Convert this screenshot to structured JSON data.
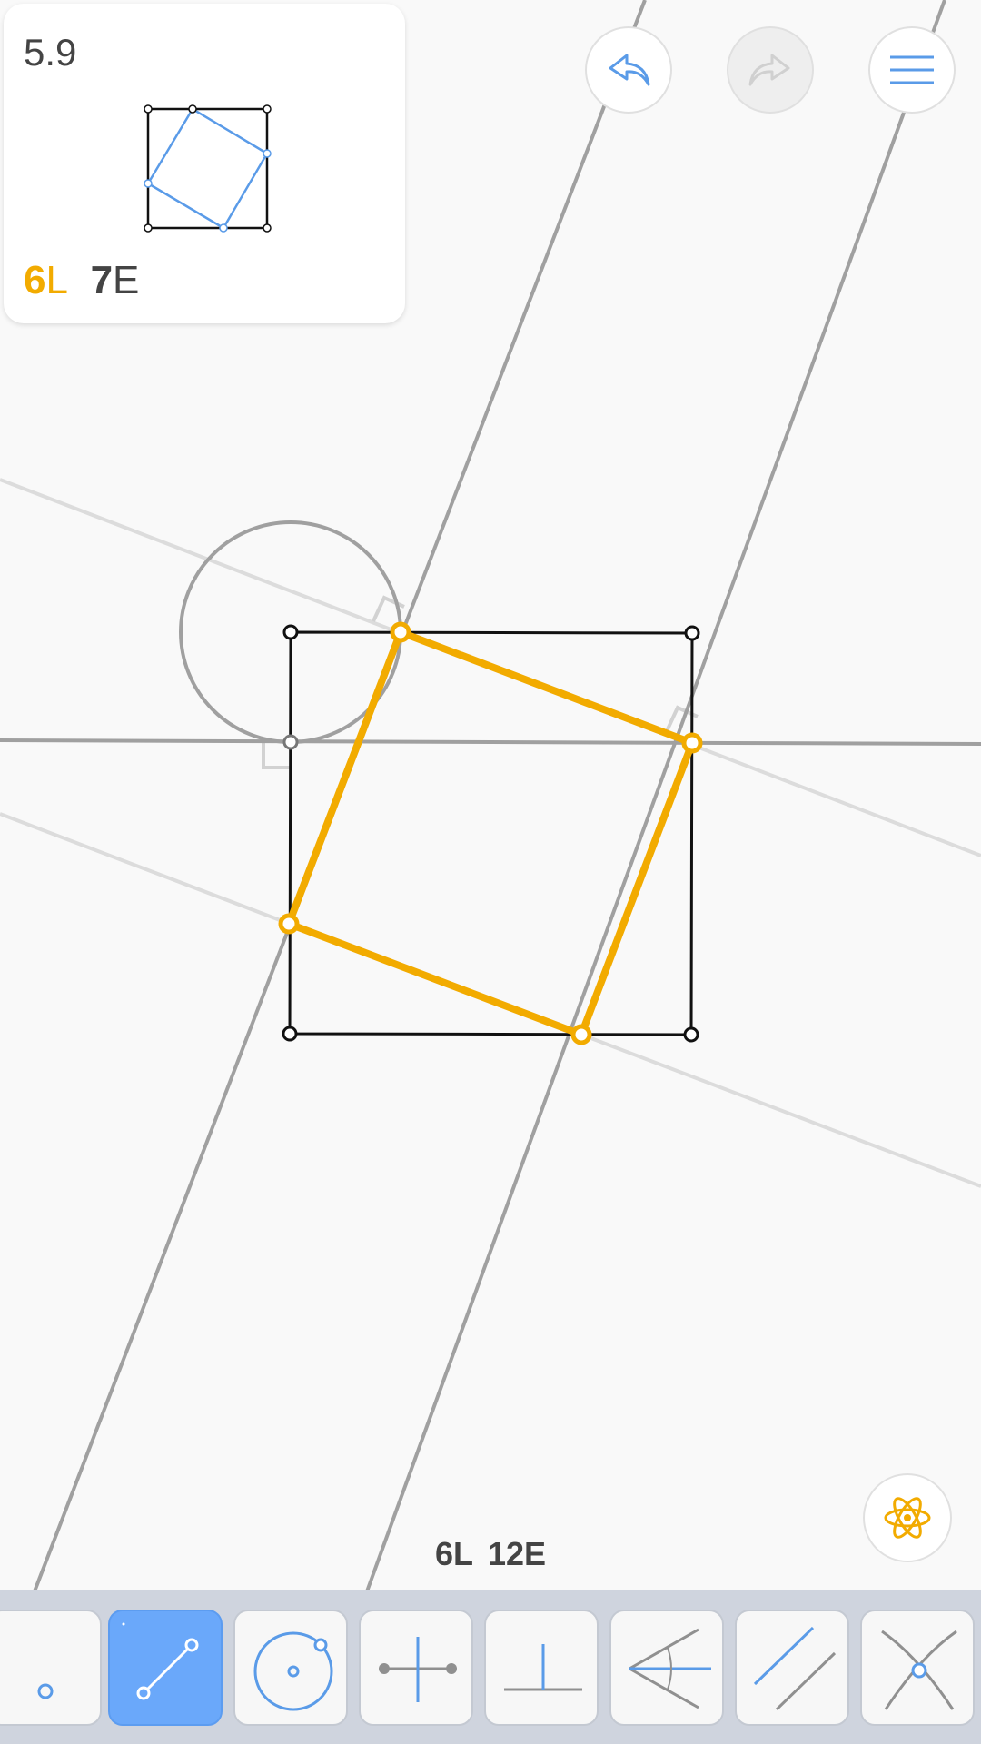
{
  "level": {
    "number": "5.9",
    "goal_l_value": "6",
    "goal_l_unit": "L",
    "goal_e_value": "7",
    "goal_e_unit": "E"
  },
  "counter": {
    "l": "6L",
    "e": "12E"
  },
  "header": {
    "undo_icon": "undo-icon",
    "redo_icon": "redo-icon",
    "menu_icon": "menu-icon"
  },
  "hint": {
    "icon": "atom-icon"
  },
  "toolbar": {
    "tools": [
      {
        "name": "point",
        "icon": "point-icon"
      },
      {
        "name": "line",
        "icon": "line-icon",
        "selected": true
      },
      {
        "name": "circle",
        "icon": "circle-icon"
      },
      {
        "name": "perpendicular-bisector",
        "icon": "perpendicular-bisector-icon"
      },
      {
        "name": "perpendicular",
        "icon": "perpendicular-icon"
      },
      {
        "name": "angle-bisector",
        "icon": "angle-bisector-icon"
      },
      {
        "name": "parallel",
        "icon": "parallel-icon"
      },
      {
        "name": "intersect",
        "icon": "intersect-icon"
      }
    ]
  },
  "colors": {
    "background": "#f9f9f9",
    "accent_orange": "#f2ab00",
    "accent_blue": "#5a9be8",
    "construction_gray": "#a0a0a0",
    "faint_gray": "#dcdcdc",
    "toolbar": "#cfd4de"
  }
}
